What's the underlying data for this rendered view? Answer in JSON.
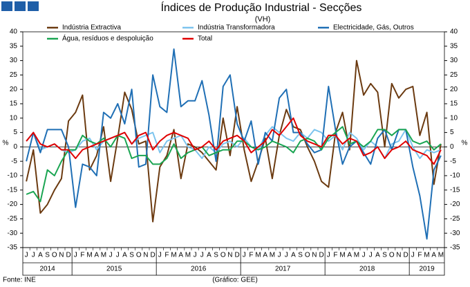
{
  "chart_data": {
    "type": "line",
    "title": "Índices de Produção Industrial - Secções",
    "subtitle": "(VH)",
    "y_label": "%",
    "source": "Fonte: INE",
    "credit": "(Gráfico: GEE)",
    "categories": [
      "J",
      "J",
      "A",
      "S",
      "O",
      "N",
      "D",
      "J",
      "F",
      "M",
      "A",
      "M",
      "J",
      "J",
      "A",
      "S",
      "O",
      "N",
      "D",
      "J",
      "F",
      "M",
      "A",
      "M",
      "J",
      "J",
      "A",
      "S",
      "O",
      "N",
      "D",
      "J",
      "F",
      "M",
      "A",
      "M",
      "J",
      "J",
      "A",
      "S",
      "O",
      "N",
      "D",
      "J",
      "F",
      "M",
      "A",
      "M",
      "J",
      "J",
      "A",
      "S",
      "O",
      "N",
      "D",
      "J",
      "F",
      "M",
      "A",
      "M"
    ],
    "years": [
      "2014",
      "2015",
      "2016",
      "2017",
      "2018",
      "2019"
    ],
    "ylim": [
      -35,
      40
    ],
    "yticks": [
      -35,
      -30,
      -25,
      -20,
      -15,
      -10,
      -5,
      0,
      5,
      10,
      15,
      20,
      25,
      30,
      35,
      40
    ],
    "y2lim": [
      -35,
      40
    ],
    "y2ticks": [
      -35,
      -30,
      -25,
      -20,
      -15,
      -10,
      -5,
      0,
      5,
      10,
      15,
      20,
      25,
      30,
      35,
      40
    ],
    "series": [
      {
        "name": "Indústria Extractiva",
        "color": "#6b3a10",
        "values": [
          -12,
          -1,
          -23,
          -20,
          -15,
          -11,
          9,
          12,
          18,
          -8,
          -3,
          7,
          -12,
          3,
          19,
          13,
          1,
          2,
          -26,
          -7,
          -3,
          6,
          -11,
          1,
          0,
          -2,
          -5,
          -8,
          10,
          -3,
          14,
          -1,
          -12,
          -5,
          3,
          -11,
          4,
          13,
          7,
          6,
          0,
          -5,
          -12,
          -14,
          5,
          12,
          -1,
          30,
          18,
          22,
          19,
          0,
          22,
          17,
          20,
          21,
          4,
          12,
          -13,
          1
        ]
      },
      {
        "name": "Indústria Transformadora",
        "color": "#7cc4ee",
        "values": [
          2,
          5,
          -1,
          0,
          1,
          -1,
          -2,
          -1,
          2,
          3,
          -1,
          2,
          3,
          4,
          5,
          1,
          3,
          4,
          5,
          -2,
          2,
          3,
          4,
          0,
          -1,
          -4,
          0,
          -2,
          1,
          2,
          0,
          3,
          0,
          -1,
          4,
          7,
          5,
          3,
          2,
          5,
          3,
          6,
          5,
          2,
          4,
          -1,
          5,
          3,
          -1,
          2,
          0,
          -4,
          1,
          2,
          6,
          0,
          -4,
          -1,
          -2,
          -1
        ]
      },
      {
        "name": "Electricidade, Gás, Outros",
        "color": "#1f6fb5",
        "values": [
          -5,
          5,
          -2,
          6,
          6,
          6,
          0,
          -21,
          -6,
          -7,
          -10,
          12,
          10,
          15,
          8,
          20,
          -7,
          -6,
          25,
          14,
          12,
          34,
          14,
          16,
          16,
          23,
          11,
          -5,
          21,
          25,
          8,
          2,
          9,
          -6,
          5,
          2,
          17,
          20,
          5,
          5,
          1,
          -2,
          -1,
          21,
          6,
          -6,
          0,
          2,
          -2,
          -6,
          3,
          6,
          -1,
          6,
          6,
          -7,
          -17,
          -32,
          -8,
          -3
        ]
      },
      {
        "name": "Água, resíduos e despoluição",
        "color": "#1aa552",
        "values": [
          -16.5,
          -15.5,
          -19,
          -8,
          -10,
          -5,
          -1,
          -1,
          4,
          2,
          1,
          3,
          0,
          4,
          3,
          -4,
          -3,
          -3,
          -6,
          -6,
          -4,
          1,
          -4,
          -2,
          -1,
          0,
          -3,
          -2,
          -1,
          -1,
          2,
          2,
          0,
          -1,
          0,
          2,
          1,
          0,
          -2,
          2,
          3,
          2,
          -1,
          3,
          5,
          7,
          1,
          2,
          0,
          2,
          6,
          6,
          4,
          6,
          6,
          2,
          1,
          2,
          -1,
          1
        ]
      },
      {
        "name": "Total",
        "color": "#e00000",
        "values": [
          2,
          5,
          1,
          0,
          1,
          -1,
          -1,
          -4,
          -1,
          0,
          1,
          2,
          3,
          4,
          5,
          1,
          4,
          5,
          -1,
          2,
          4,
          5,
          4,
          3,
          -1,
          0,
          2,
          -1,
          2,
          3,
          4,
          2,
          -2,
          0,
          2,
          6,
          4,
          7,
          10,
          4,
          2,
          1,
          0,
          4,
          4,
          1,
          3,
          2,
          -3,
          -2,
          0,
          -4,
          -1,
          0,
          2,
          -1,
          -2,
          -3,
          -6,
          -1
        ]
      }
    ]
  }
}
